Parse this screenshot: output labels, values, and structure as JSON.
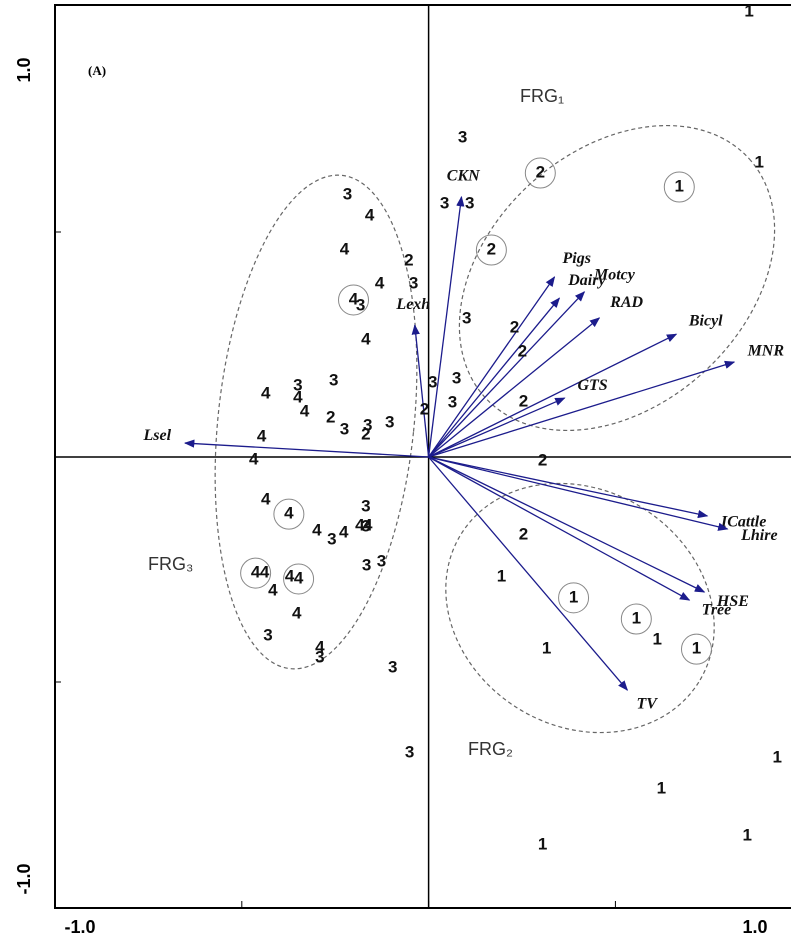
{
  "chart_data": {
    "type": "biplot",
    "panel_label": "(A)",
    "xlim": [
      -1.0,
      0.97
    ],
    "ylim": [
      -1.0,
      1.0
    ],
    "xticks": [
      {
        "value": -1,
        "label": "-1.0"
      },
      {
        "value": 1,
        "label": "1.0"
      }
    ],
    "yticks": [
      {
        "value": 1,
        "label": "1.0"
      },
      {
        "value": -1,
        "label": "-1.0"
      }
    ],
    "minor_xticks": [
      -0.5,
      0,
      0.5
    ],
    "minor_yticks": [
      0.5,
      0,
      -0.5
    ],
    "arrow_color": "#1c1c8c",
    "point_color": "#111111",
    "arrows": [
      {
        "name": "CKN",
        "x": 0.088,
        "y": 0.578
      },
      {
        "name": "Lexh",
        "x": -0.037,
        "y": 0.293
      },
      {
        "name": "Lsel",
        "x": -0.652,
        "y": 0.031
      },
      {
        "name": "Pigs",
        "x": 0.337,
        "y": 0.4
      },
      {
        "name": "Dairy",
        "x": 0.35,
        "y": 0.353
      },
      {
        "name": "Motcy",
        "x": 0.417,
        "y": 0.367
      },
      {
        "name": "RAD",
        "x": 0.457,
        "y": 0.309
      },
      {
        "name": "Bicyl",
        "x": 0.663,
        "y": 0.273
      },
      {
        "name": "MNR",
        "x": 0.818,
        "y": 0.211
      },
      {
        "name": "GTS",
        "x": 0.364,
        "y": 0.131
      },
      {
        "name": "ICattle",
        "x": 0.746,
        "y": -0.131
      },
      {
        "name": "Lhire",
        "x": 0.8,
        "y": -0.16
      },
      {
        "name": "HSE",
        "x": 0.738,
        "y": -0.3
      },
      {
        "name": "Tree",
        "x": 0.698,
        "y": -0.318
      },
      {
        "name": "TV",
        "x": 0.532,
        "y": -0.518
      }
    ],
    "points": [
      {
        "label": "1",
        "x": 0.858,
        "y": 0.989
      },
      {
        "label": "1",
        "x": 0.885,
        "y": 0.653
      },
      {
        "label": "1",
        "x": 0.671,
        "y": 0.6,
        "circled": true
      },
      {
        "label": "2",
        "x": 0.299,
        "y": 0.631,
        "circled": true
      },
      {
        "label": "3",
        "x": 0.091,
        "y": 0.709
      },
      {
        "label": "3",
        "x": 0.043,
        "y": 0.562
      },
      {
        "label": "3",
        "x": 0.11,
        "y": 0.562
      },
      {
        "label": "2",
        "x": 0.168,
        "y": 0.46,
        "circled": true
      },
      {
        "label": "3",
        "x": 0.102,
        "y": 0.307
      },
      {
        "label": "2",
        "x": 0.23,
        "y": 0.287
      },
      {
        "label": "2",
        "x": 0.251,
        "y": 0.233
      },
      {
        "label": "2",
        "x": 0.254,
        "y": 0.122
      },
      {
        "label": "3",
        "x": 0.075,
        "y": 0.173
      },
      {
        "label": "3",
        "x": 0.064,
        "y": 0.12
      },
      {
        "label": "3",
        "x": 0.011,
        "y": 0.164
      },
      {
        "label": "2",
        "x": -0.011,
        "y": 0.104
      },
      {
        "label": "2",
        "x": 0.305,
        "y": -0.009
      },
      {
        "label": "2",
        "x": 0.254,
        "y": -0.173
      },
      {
        "label": "1",
        "x": 0.195,
        "y": -0.267
      },
      {
        "label": "1",
        "x": 0.388,
        "y": -0.313,
        "circled": true
      },
      {
        "label": "1",
        "x": 0.556,
        "y": -0.36,
        "circled": true
      },
      {
        "label": "1",
        "x": 0.612,
        "y": -0.407
      },
      {
        "label": "1",
        "x": 0.717,
        "y": -0.427,
        "circled": true
      },
      {
        "label": "1",
        "x": 0.316,
        "y": -0.427
      },
      {
        "label": "1",
        "x": 0.623,
        "y": -0.738
      },
      {
        "label": "1",
        "x": 0.933,
        "y": -0.669
      },
      {
        "label": "1",
        "x": 0.853,
        "y": -0.842
      },
      {
        "label": "1",
        "x": 0.305,
        "y": -0.862
      },
      {
        "label": "3",
        "x": -0.096,
        "y": -0.469
      },
      {
        "label": "3",
        "x": -0.051,
        "y": -0.658
      },
      {
        "label": "3",
        "x": -0.217,
        "y": 0.582
      },
      {
        "label": "4",
        "x": -0.158,
        "y": 0.536
      },
      {
        "label": "4",
        "x": -0.225,
        "y": 0.46
      },
      {
        "label": "2",
        "x": -0.053,
        "y": 0.436
      },
      {
        "label": "3",
        "x": -0.04,
        "y": 0.384
      },
      {
        "label": "4",
        "x": -0.131,
        "y": 0.384
      },
      {
        "label": "4",
        "x": -0.201,
        "y": 0.349,
        "circled": true
      },
      {
        "label": "3",
        "x": -0.182,
        "y": 0.336
      },
      {
        "label": "4",
        "x": -0.168,
        "y": 0.26
      },
      {
        "label": "3",
        "x": -0.254,
        "y": 0.169
      },
      {
        "label": "4",
        "x": -0.436,
        "y": 0.14
      },
      {
        "label": "3",
        "x": -0.35,
        "y": 0.158
      },
      {
        "label": "4",
        "x": -0.35,
        "y": 0.131
      },
      {
        "label": "4",
        "x": -0.332,
        "y": 0.1
      },
      {
        "label": "2",
        "x": -0.262,
        "y": 0.087
      },
      {
        "label": "3",
        "x": -0.225,
        "y": 0.06
      },
      {
        "label": "3",
        "x": -0.163,
        "y": 0.069
      },
      {
        "label": "2",
        "x": -0.168,
        "y": 0.049
      },
      {
        "label": "3",
        "x": -0.104,
        "y": 0.076
      },
      {
        "label": "4",
        "x": -0.447,
        "y": 0.044
      },
      {
        "label": "4",
        "x": -0.468,
        "y": -0.007
      },
      {
        "label": "4",
        "x": -0.436,
        "y": -0.096
      },
      {
        "label": "4",
        "x": -0.374,
        "y": -0.127,
        "circled": true
      },
      {
        "label": "3",
        "x": -0.168,
        "y": -0.111
      },
      {
        "label": "3",
        "x": -0.168,
        "y": -0.156
      },
      {
        "label": "4",
        "x": -0.299,
        "y": -0.164
      },
      {
        "label": "3",
        "x": -0.259,
        "y": -0.184
      },
      {
        "label": "4",
        "x": -0.227,
        "y": -0.169
      },
      {
        "label": "4",
        "x": -0.184,
        "y": -0.153
      },
      {
        "label": "4",
        "x": -0.163,
        "y": -0.153
      },
      {
        "label": "3",
        "x": -0.166,
        "y": -0.242
      },
      {
        "label": "3",
        "x": -0.126,
        "y": -0.233
      },
      {
        "label": "4",
        "x": -0.463,
        "y": -0.258,
        "circled": true
      },
      {
        "label": "4",
        "x": -0.439,
        "y": -0.258
      },
      {
        "label": "4",
        "x": -0.372,
        "y": -0.267
      },
      {
        "label": "4",
        "x": -0.348,
        "y": -0.271,
        "circled": true
      },
      {
        "label": "4",
        "x": -0.417,
        "y": -0.298
      },
      {
        "label": "4",
        "x": -0.353,
        "y": -0.349
      },
      {
        "label": "3",
        "x": -0.43,
        "y": -0.398
      },
      {
        "label": "4",
        "x": -0.291,
        "y": -0.424
      },
      {
        "label": "3",
        "x": -0.291,
        "y": -0.447
      }
    ],
    "groups": [
      "FRG₁",
      "FRG₂",
      "FRG₃"
    ]
  }
}
